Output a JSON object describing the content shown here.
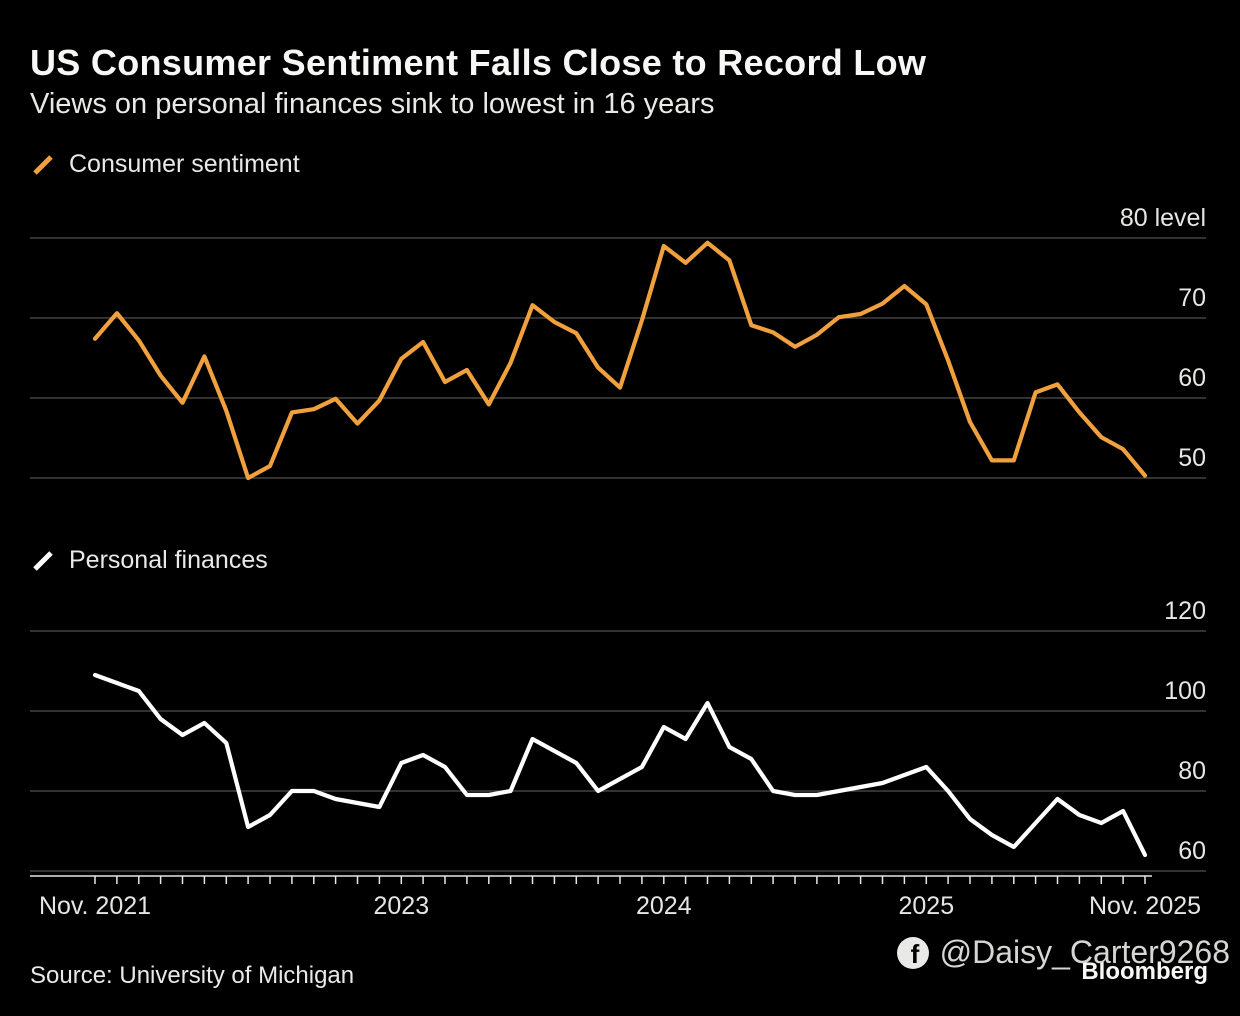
{
  "header": {
    "title": "US Consumer Sentiment Falls Close to Record Low",
    "subtitle": "Views on personal finances sink to lowest in 16 years"
  },
  "colors": {
    "background": "#000000",
    "title_text": "#f7f7f5",
    "subtitle_text": "#e9e9e7",
    "gridline": "#4f4f4f",
    "axis_text": "#e6e6e4",
    "sentiment_line": "#f0a13e",
    "finances_line": "#ffffff",
    "watermark_text": "#d6d6d4"
  },
  "chart_data": [
    {
      "type": "line",
      "legend": "Consumer sentiment",
      "legend_marker": "slash-icon",
      "line_name": "consumer-sentiment-line",
      "color": "#f0a13e",
      "ylim": [
        50,
        80
      ],
      "yticks": [
        80,
        70,
        60,
        50
      ],
      "ytick_labels": [
        "80 level",
        "70",
        "60",
        "50"
      ],
      "x_period": {
        "start": "Nov. 2021",
        "end": "Nov. 2025",
        "frequency": "monthly"
      },
      "grid": "horizontal-only",
      "legend_position": "top-left",
      "values": [
        67.4,
        70.6,
        67.2,
        62.8,
        59.4,
        65.2,
        58.4,
        50.0,
        51.5,
        58.2,
        58.6,
        59.9,
        56.8,
        59.7,
        64.9,
        67.0,
        62.0,
        63.5,
        59.2,
        64.4,
        71.6,
        69.5,
        68.1,
        63.8,
        61.3,
        69.7,
        79.0,
        76.9,
        79.4,
        77.2,
        69.1,
        68.2,
        66.4,
        67.9,
        70.1,
        70.5,
        71.8,
        74.0,
        71.7,
        64.7,
        57.0,
        52.2,
        52.2,
        60.7,
        61.7,
        58.2,
        55.1,
        53.6,
        50.3
      ]
    },
    {
      "type": "line",
      "legend": "Personal finances",
      "legend_marker": "slash-icon",
      "line_name": "personal-finances-line",
      "color": "#ffffff",
      "ylim": [
        60,
        120
      ],
      "yticks": [
        120,
        100,
        80,
        60
      ],
      "ytick_labels": [
        "120",
        "100",
        "80",
        "60"
      ],
      "x_period": {
        "start": "Nov. 2021",
        "end": "Nov. 2025",
        "frequency": "monthly"
      },
      "grid": "horizontal-only",
      "legend_position": "top-left",
      "values": [
        109,
        107,
        105,
        98,
        94,
        97,
        92,
        71,
        74,
        80,
        80,
        78,
        77,
        76,
        87,
        89,
        86,
        79,
        79,
        80,
        93,
        90,
        87,
        80,
        83,
        86,
        96,
        93,
        102,
        91,
        88,
        80,
        79,
        79,
        80,
        81,
        82,
        84,
        86,
        80,
        73,
        69,
        66,
        72,
        78,
        74,
        72,
        75,
        64
      ]
    }
  ],
  "x_axis": {
    "n_points": 49,
    "tick_labels": [
      {
        "label": "Nov. 2021",
        "index": 0
      },
      {
        "label": "2023",
        "index": 14
      },
      {
        "label": "2024",
        "index": 26
      },
      {
        "label": "2025",
        "index": 38
      },
      {
        "label": "Nov. 2025",
        "index": 48
      }
    ]
  },
  "footer": {
    "source": "Source: University of Michigan",
    "brand": "Bloomberg",
    "watermark": "@Daisy_Carter9268",
    "watermark_icon": "facebook-icon"
  }
}
